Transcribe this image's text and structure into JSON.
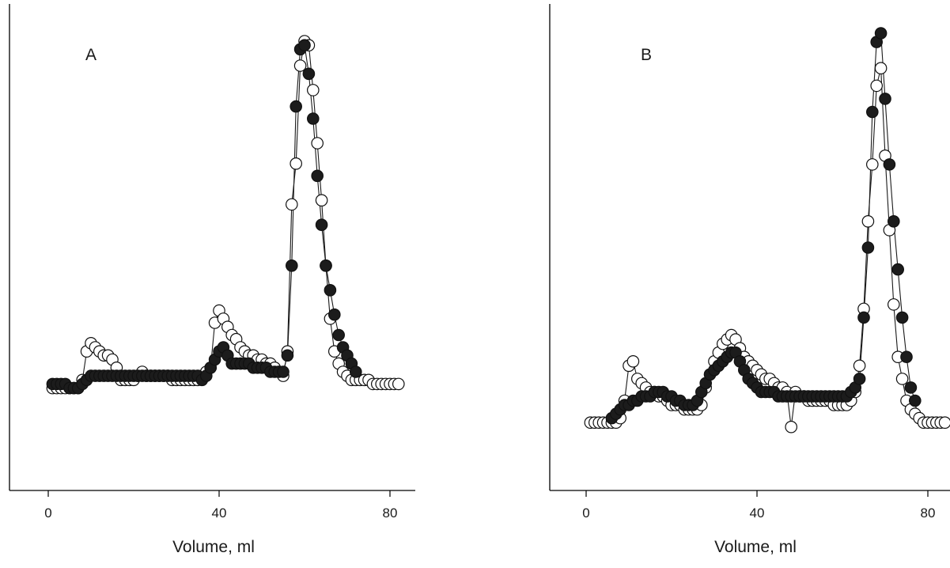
{
  "chart_data": [
    {
      "type": "line",
      "panel_label": "A",
      "xlabel": "Volume, ml",
      "ylabel": "",
      "xlim": [
        -2,
        84
      ],
      "ylim": [
        0,
        100
      ],
      "xticks": [
        0,
        40,
        80
      ],
      "grid": false,
      "series": [
        {
          "marker": "open-circle",
          "x": [
            1,
            2,
            3,
            4,
            5,
            6,
            7,
            8,
            9,
            10,
            11,
            12,
            13,
            14,
            15,
            16,
            17,
            18,
            19,
            20,
            21,
            22,
            23,
            24,
            25,
            26,
            27,
            28,
            29,
            30,
            31,
            32,
            33,
            34,
            35,
            36,
            37,
            38,
            39,
            40,
            41,
            42,
            43,
            44,
            45,
            46,
            47,
            48,
            49,
            50,
            51,
            52,
            53,
            54,
            55,
            56,
            57,
            58,
            59,
            60,
            61,
            62,
            63,
            64,
            65,
            66,
            67,
            68,
            69,
            70,
            71,
            72,
            73,
            74,
            75,
            76,
            77,
            78,
            79,
            80,
            81,
            82
          ],
          "y": [
            15,
            15,
            15,
            15,
            15,
            15,
            15,
            17,
            24,
            26,
            25,
            24,
            23,
            23,
            22,
            20,
            17,
            17,
            17,
            17,
            18,
            19,
            18,
            18,
            18,
            18,
            18,
            18,
            17,
            17,
            17,
            17,
            17,
            17,
            17,
            18,
            19,
            20,
            31,
            34,
            32,
            30,
            28,
            27,
            25,
            24,
            23,
            23,
            22,
            22,
            21,
            21,
            20,
            19,
            18,
            24,
            60,
            70,
            94,
            100,
            99,
            88,
            75,
            61,
            45,
            32,
            24,
            21,
            19,
            18,
            17,
            17,
            17,
            17,
            17,
            16,
            16,
            16,
            16,
            16,
            16,
            16
          ]
        },
        {
          "marker": "filled-circle",
          "x": [
            1,
            2,
            3,
            4,
            5,
            6,
            7,
            8,
            9,
            10,
            11,
            12,
            13,
            14,
            15,
            16,
            17,
            18,
            19,
            20,
            21,
            22,
            23,
            24,
            25,
            26,
            27,
            28,
            29,
            30,
            31,
            32,
            33,
            34,
            35,
            36,
            37,
            38,
            39,
            40,
            41,
            42,
            43,
            44,
            45,
            46,
            47,
            48,
            49,
            50,
            51,
            52,
            53,
            54,
            55,
            56,
            57,
            58,
            59,
            60,
            61,
            62,
            63,
            64,
            65,
            66,
            67,
            68,
            69,
            70,
            71,
            72
          ],
          "y": [
            16,
            16,
            16,
            16,
            15,
            15,
            15,
            16,
            17,
            18,
            18,
            18,
            18,
            18,
            18,
            18,
            18,
            18,
            18,
            18,
            18,
            18,
            18,
            18,
            18,
            18,
            18,
            18,
            18,
            18,
            18,
            18,
            18,
            18,
            18,
            17,
            18,
            20,
            22,
            24,
            25,
            23,
            21,
            21,
            21,
            21,
            21,
            20,
            20,
            20,
            20,
            19,
            19,
            19,
            19,
            23,
            45,
            84,
            98,
            99,
            92,
            81,
            67,
            55,
            45,
            39,
            33,
            28,
            25,
            23,
            21,
            19
          ]
        }
      ]
    },
    {
      "type": "line",
      "panel_label": "B",
      "xlabel": "Volume, ml",
      "ylabel": "",
      "xlim": [
        -2,
        84
      ],
      "ylim": [
        0,
        100
      ],
      "xticks": [
        0,
        40,
        80
      ],
      "grid": false,
      "series": [
        {
          "marker": "open-circle",
          "x": [
            1,
            2,
            3,
            4,
            5,
            6,
            7,
            8,
            9,
            10,
            11,
            12,
            13,
            14,
            15,
            16,
            17,
            18,
            19,
            20,
            21,
            22,
            23,
            24,
            25,
            26,
            27,
            28,
            29,
            30,
            31,
            32,
            33,
            34,
            35,
            36,
            37,
            38,
            39,
            40,
            41,
            42,
            43,
            44,
            45,
            46,
            47,
            48,
            49,
            50,
            51,
            52,
            53,
            54,
            55,
            56,
            57,
            58,
            59,
            60,
            61,
            62,
            63,
            64,
            65,
            66,
            67,
            68,
            69,
            70,
            71,
            72,
            73,
            74,
            75,
            76,
            77,
            78,
            79,
            80,
            81,
            82,
            83,
            84
          ],
          "y": [
            11,
            11,
            11,
            11,
            11,
            11,
            11,
            12,
            16,
            24,
            25,
            21,
            20,
            19,
            18,
            18,
            17,
            17,
            16,
            15,
            15,
            15,
            14,
            14,
            14,
            14,
            15,
            19,
            22,
            25,
            27,
            29,
            30,
            31,
            30,
            28,
            26,
            25,
            24,
            23,
            22,
            21,
            21,
            20,
            19,
            19,
            18,
            10,
            18,
            17,
            17,
            16,
            16,
            16,
            16,
            16,
            16,
            15,
            15,
            15,
            15,
            16,
            18,
            24,
            37,
            57,
            70,
            88,
            92,
            72,
            55,
            38,
            26,
            21,
            16,
            14,
            13,
            12,
            11,
            11,
            11,
            11,
            11,
            11
          ]
        },
        {
          "marker": "filled-circle",
          "x": [
            6,
            7,
            8,
            9,
            10,
            11,
            12,
            13,
            14,
            15,
            16,
            17,
            18,
            19,
            20,
            21,
            22,
            23,
            24,
            25,
            26,
            27,
            28,
            29,
            30,
            31,
            32,
            33,
            34,
            35,
            36,
            37,
            38,
            39,
            40,
            41,
            42,
            43,
            44,
            45,
            46,
            47,
            48,
            49,
            50,
            51,
            52,
            53,
            54,
            55,
            56,
            57,
            58,
            59,
            60,
            61,
            62,
            63,
            64,
            65,
            66,
            67,
            68,
            69,
            70,
            71,
            72,
            73,
            74,
            75,
            76,
            77
          ],
          "y": [
            12,
            13,
            14,
            15,
            15,
            16,
            16,
            17,
            17,
            17,
            18,
            18,
            18,
            17,
            17,
            16,
            16,
            15,
            15,
            15,
            16,
            18,
            20,
            22,
            23,
            24,
            25,
            26,
            27,
            27,
            25,
            23,
            21,
            20,
            19,
            18,
            18,
            18,
            18,
            17,
            17,
            17,
            17,
            17,
            17,
            17,
            17,
            17,
            17,
            17,
            17,
            17,
            17,
            17,
            17,
            17,
            18,
            19,
            21,
            35,
            51,
            82,
            98,
            100,
            85,
            70,
            57,
            46,
            35,
            26,
            19,
            16
          ]
        }
      ]
    }
  ]
}
